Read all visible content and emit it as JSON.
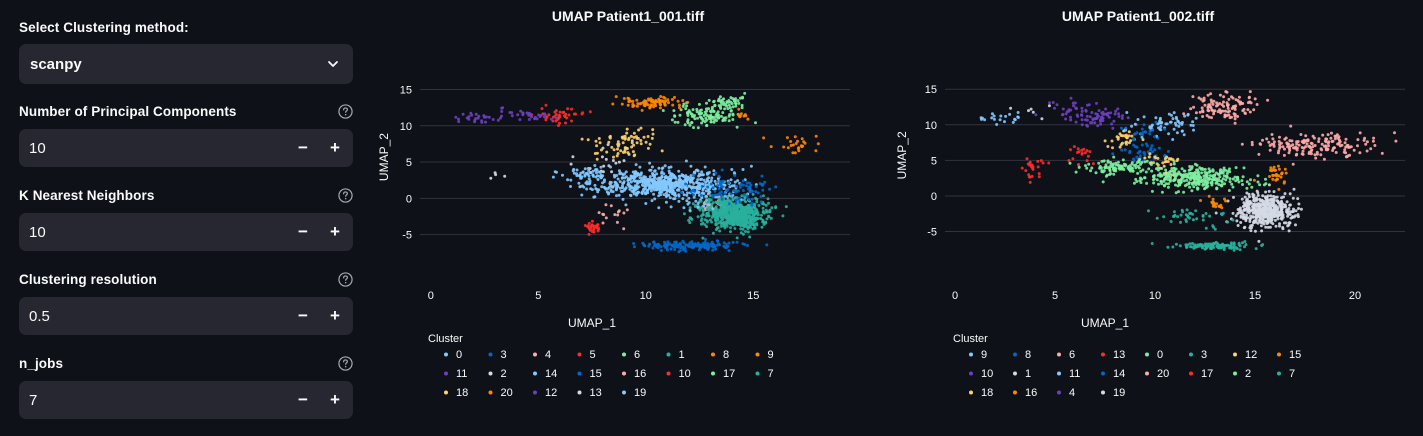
{
  "sidebar": {
    "method": {
      "label": "Select Clustering method:",
      "value": "scanpy"
    },
    "pcs": {
      "label": "Number of Principal Components",
      "value": "10"
    },
    "knn": {
      "label": "K Nearest Neighbors",
      "value": "10"
    },
    "resolution": {
      "label": "Clustering resolution",
      "value": "0.5"
    },
    "njobs": {
      "label": "n_jobs",
      "value": "7"
    },
    "minus": "−",
    "plus": "+"
  },
  "colors": {
    "background": "#0e1117",
    "input_bg": "#262730",
    "palette": {
      "light_blue": "#83c9ff",
      "dark_blue": "#0068c9",
      "pink": "#ffabab",
      "red": "#ff2b2b",
      "light_green": "#7defa1",
      "teal": "#29b09d",
      "yellow": "#ffd16a",
      "orange": "#ff8700",
      "purple": "#6d3fc0",
      "white": "#d5dae5"
    }
  },
  "chart_data": [
    {
      "type": "scatter",
      "title": "UMAP Patient1_001.tiff",
      "xlabel": "UMAP_1",
      "ylabel": "UMAP_2",
      "xlim": [
        -0.5,
        19.5
      ],
      "ylim": [
        -8.5,
        17
      ],
      "xticks": [
        0,
        5,
        10,
        15
      ],
      "yticks": [
        -5,
        0,
        5,
        10,
        15
      ],
      "legend_title": "Cluster",
      "legend": [
        "0",
        "3",
        "4",
        "5",
        "6",
        "1",
        "8",
        "9",
        "11",
        "2",
        "14",
        "15",
        "16",
        "10",
        "17",
        "7",
        "18",
        "20",
        "12",
        "13",
        "19"
      ],
      "clusters": [
        {
          "name": "0",
          "color": "light_blue",
          "cx": 10.5,
          "cy": 2.0,
          "sx": 2.8,
          "sy": 1.7,
          "n": 520
        },
        {
          "name": "3",
          "color": "dark_blue",
          "cx": 12.0,
          "cy": -6.5,
          "sx": 2.0,
          "sy": 0.5,
          "n": 150
        },
        {
          "name": "4",
          "color": "pink",
          "cx": 13.0,
          "cy": -1.0,
          "sx": 0.6,
          "sy": 0.8,
          "n": 25
        },
        {
          "name": "5",
          "color": "red",
          "cx": 7.5,
          "cy": -4.0,
          "sx": 0.4,
          "sy": 1.0,
          "n": 25
        },
        {
          "name": "6",
          "color": "light_green",
          "cx": 12.8,
          "cy": 11.5,
          "sx": 1.4,
          "sy": 1.3,
          "n": 110
        },
        {
          "name": "1",
          "color": "teal",
          "cx": 14.0,
          "cy": -2.0,
          "sx": 1.4,
          "sy": 2.0,
          "n": 550
        },
        {
          "name": "8",
          "color": "orange",
          "cx": 10.3,
          "cy": 13.2,
          "sx": 1.3,
          "sy": 0.7,
          "n": 80
        },
        {
          "name": "9",
          "color": "orange",
          "cx": 17.0,
          "cy": 7.5,
          "sx": 1.0,
          "sy": 1.5,
          "n": 25
        },
        {
          "name": "11",
          "color": "purple",
          "cx": 2.0,
          "cy": 11.0,
          "sx": 1.0,
          "sy": 0.6,
          "n": 25
        },
        {
          "name": "2",
          "color": "white",
          "cx": 8.0,
          "cy": 5.0,
          "sx": 1.0,
          "sy": 2.0,
          "n": 20
        },
        {
          "name": "14",
          "color": "light_blue",
          "cx": 12.0,
          "cy": 1.5,
          "sx": 2.5,
          "sy": 2.5,
          "n": 160
        },
        {
          "name": "15",
          "color": "dark_blue",
          "cx": 14.0,
          "cy": 1.0,
          "sx": 1.8,
          "sy": 2.0,
          "n": 90
        },
        {
          "name": "16",
          "color": "pink",
          "cx": 8.5,
          "cy": -2.0,
          "sx": 0.8,
          "sy": 1.5,
          "n": 15
        },
        {
          "name": "10",
          "color": "red",
          "cx": 6.0,
          "cy": 11.5,
          "sx": 1.0,
          "sy": 1.2,
          "n": 40
        },
        {
          "name": "17",
          "color": "light_green",
          "cx": 13.8,
          "cy": 13.0,
          "sx": 0.8,
          "sy": 1.0,
          "n": 50
        },
        {
          "name": "7",
          "color": "teal",
          "cx": 14.5,
          "cy": -2.5,
          "sx": 1.0,
          "sy": 1.5,
          "n": 120
        },
        {
          "name": "18",
          "color": "yellow",
          "cx": 9.0,
          "cy": 7.5,
          "sx": 1.3,
          "sy": 1.7,
          "n": 70
        },
        {
          "name": "20",
          "color": "orange",
          "cx": 14.5,
          "cy": 11.5,
          "sx": 0.3,
          "sy": 0.5,
          "n": 10
        },
        {
          "name": "12",
          "color": "purple",
          "cx": 4.5,
          "cy": 11.5,
          "sx": 1.3,
          "sy": 0.9,
          "n": 30
        },
        {
          "name": "13",
          "color": "white",
          "cx": 3.0,
          "cy": 3.5,
          "sx": 0.4,
          "sy": 1.0,
          "n": 4
        },
        {
          "name": "19",
          "color": "light_blue",
          "cx": 7.5,
          "cy": 3.5,
          "sx": 1.2,
          "sy": 0.8,
          "n": 40
        }
      ]
    },
    {
      "type": "scatter",
      "title": "UMAP Patient1_002.tiff",
      "xlabel": "UMAP_1",
      "ylabel": "UMAP_2",
      "xlim": [
        -0.5,
        22.5
      ],
      "ylim": [
        -9,
        17
      ],
      "xticks": [
        0,
        5,
        10,
        15,
        20
      ],
      "yticks": [
        -5,
        0,
        5,
        10,
        15
      ],
      "legend_title": "Cluster",
      "legend": [
        "9",
        "8",
        "6",
        "13",
        "0",
        "3",
        "12",
        "15",
        "10",
        "1",
        "11",
        "14",
        "20",
        "17",
        "2",
        "7",
        "18",
        "16",
        "4",
        "19"
      ],
      "clusters": [
        {
          "name": "9",
          "color": "light_blue",
          "cx": 2.0,
          "cy": 11.0,
          "sx": 1.0,
          "sy": 0.7,
          "n": 20
        },
        {
          "name": "8",
          "color": "dark_blue",
          "cx": 9.5,
          "cy": 6.0,
          "sx": 1.0,
          "sy": 1.5,
          "n": 45
        },
        {
          "name": "6",
          "color": "pink",
          "cx": 13.5,
          "cy": 12.5,
          "sx": 1.8,
          "sy": 1.6,
          "n": 110
        },
        {
          "name": "13",
          "color": "red",
          "cx": 4.0,
          "cy": 4.0,
          "sx": 0.8,
          "sy": 1.5,
          "n": 25
        },
        {
          "name": "0",
          "color": "light_green",
          "cx": 12.0,
          "cy": 2.5,
          "sx": 2.5,
          "sy": 1.5,
          "n": 330
        },
        {
          "name": "3",
          "color": "teal",
          "cx": 13.0,
          "cy": -7.0,
          "sx": 1.8,
          "sy": 0.4,
          "n": 110
        },
        {
          "name": "12",
          "color": "yellow",
          "cx": 8.5,
          "cy": 8.0,
          "sx": 1.0,
          "sy": 1.2,
          "n": 30
        },
        {
          "name": "15",
          "color": "orange",
          "cx": 16.0,
          "cy": 3.0,
          "sx": 0.6,
          "sy": 1.5,
          "n": 30
        },
        {
          "name": "10",
          "color": "purple",
          "cx": 7.0,
          "cy": 11.0,
          "sx": 1.4,
          "sy": 1.3,
          "n": 70
        },
        {
          "name": "1",
          "color": "white",
          "cx": 15.5,
          "cy": -2.0,
          "sx": 1.3,
          "sy": 2.0,
          "n": 480
        },
        {
          "name": "11",
          "color": "light_blue",
          "cx": 10.5,
          "cy": 10.0,
          "sx": 1.5,
          "sy": 2.0,
          "n": 60
        },
        {
          "name": "14",
          "color": "dark_blue",
          "cx": 9.5,
          "cy": 9.0,
          "sx": 0.8,
          "sy": 1.2,
          "n": 20
        },
        {
          "name": "20",
          "color": "pink",
          "cx": 18.0,
          "cy": 7.0,
          "sx": 2.5,
          "sy": 1.8,
          "n": 170
        },
        {
          "name": "17",
          "color": "red",
          "cx": 6.5,
          "cy": 5.5,
          "sx": 1.0,
          "sy": 1.5,
          "n": 20
        },
        {
          "name": "2",
          "color": "light_green",
          "cx": 8.0,
          "cy": 4.0,
          "sx": 1.5,
          "sy": 1.0,
          "n": 100
        },
        {
          "name": "7",
          "color": "teal",
          "cx": 12.0,
          "cy": -3.0,
          "sx": 1.5,
          "sy": 1.5,
          "n": 40
        },
        {
          "name": "18",
          "color": "yellow",
          "cx": 10.5,
          "cy": 5.0,
          "sx": 1.0,
          "sy": 1.2,
          "n": 25
        },
        {
          "name": "16",
          "color": "orange",
          "cx": 13.0,
          "cy": -1.0,
          "sx": 0.5,
          "sy": 0.8,
          "n": 20
        },
        {
          "name": "4",
          "color": "purple",
          "cx": 6.0,
          "cy": 12.5,
          "sx": 1.0,
          "sy": 1.2,
          "n": 20
        },
        {
          "name": "19",
          "color": "white",
          "cx": 4.0,
          "cy": 12.0,
          "sx": 0.8,
          "sy": 1.0,
          "n": 6
        }
      ]
    }
  ]
}
